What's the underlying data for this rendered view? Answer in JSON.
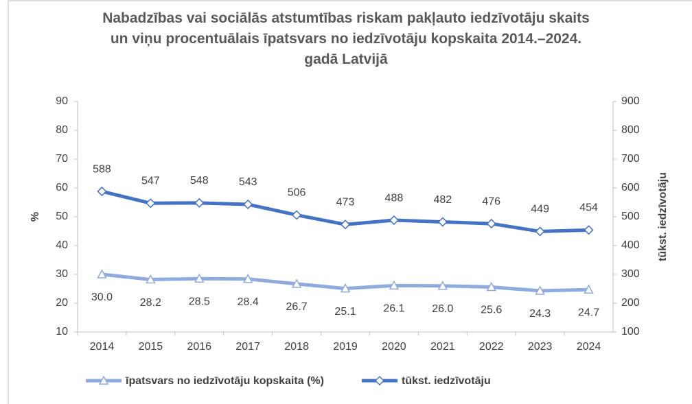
{
  "chart_data": {
    "type": "line",
    "title": "Nabadzības vai sociālās atstumtības riskam pakļauto iedzīvotāju skaits un viņu procentuālais īpatsvars no iedzīvotāju kopskaita 2014.–2024. gadā Latvijā",
    "ylabel": "%",
    "y2label": "tūkst. iedzīvotāju",
    "categories": [
      "2014",
      "2015",
      "2016",
      "2017",
      "2018",
      "2019",
      "2020",
      "2021",
      "2022",
      "2023",
      "2024"
    ],
    "series": [
      {
        "name": "īpatsvars no iedzīvotāju kopskaita (%)",
        "color": "#8faadc",
        "marker": "triangle",
        "axis": "y",
        "values": [
          30.0,
          28.2,
          28.5,
          28.4,
          26.7,
          25.1,
          26.1,
          26.0,
          25.6,
          24.3,
          24.7
        ],
        "value_labels": [
          "30.0",
          "28.2",
          "28.5",
          "28.4",
          "26.7",
          "25.1",
          "26.1",
          "26.0",
          "25.6",
          "24.3",
          "24.7"
        ]
      },
      {
        "name": "tūkst. iedzīvotāju",
        "color": "#4472c4",
        "marker": "diamond",
        "axis": "y2",
        "values": [
          588,
          547,
          548,
          543,
          506,
          473,
          488,
          482,
          476,
          449,
          454
        ]
      }
    ],
    "ylim": [
      10,
      90
    ],
    "yticks": [
      10,
      20,
      30,
      40,
      50,
      60,
      70,
      80,
      90
    ],
    "y2lim": [
      100,
      900
    ],
    "y2ticks": [
      100,
      200,
      300,
      400,
      500,
      600,
      700,
      800,
      900
    ],
    "grid": false,
    "legend": "bottom"
  }
}
